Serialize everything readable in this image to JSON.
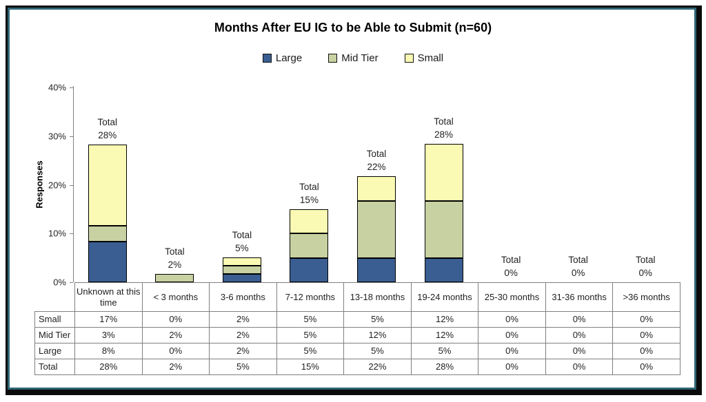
{
  "frame": {
    "outer_border_color": "#0b0b0b",
    "inner_border_color": "#2f6577"
  },
  "title": "Months After EU IG to be Able to Submit (n=60)",
  "y_axis_label": "Responses",
  "chart_data": {
    "type": "bar",
    "stacked": true,
    "title": "Months After EU IG to be Able to Submit (n=60)",
    "ylabel": "Responses",
    "ylim": [
      0,
      40
    ],
    "ytick_labels": [
      "0%",
      "10%",
      "20%",
      "30%",
      "40%"
    ],
    "ytick_values": [
      0,
      10,
      20,
      30,
      40
    ],
    "grid": false,
    "legend_position": "top",
    "categories": [
      "Unknown at this time",
      "< 3 months",
      "3-6 months",
      "7-12 months",
      "13-18 months",
      "19-24 months",
      "25-30 months",
      "31-36 months",
      ">36 months"
    ],
    "series": [
      {
        "name": "Large",
        "color": "#3A5E91",
        "values": [
          8.3,
          0,
          1.7,
          5,
          5,
          5,
          0,
          0,
          0
        ]
      },
      {
        "name": "Mid Tier",
        "color": "#C7D1A2",
        "values": [
          3.3,
          1.7,
          1.7,
          5,
          11.7,
          11.7,
          0,
          0,
          0
        ]
      },
      {
        "name": "Small",
        "color": "#FAFAB4",
        "values": [
          16.7,
          0,
          1.7,
          5,
          5,
          11.7,
          0,
          0,
          0
        ]
      }
    ],
    "total_label_prefix": "Total",
    "total_labels": [
      "28%",
      "2%",
      "5%",
      "15%",
      "22%",
      "28%",
      "0%",
      "0%",
      "0%"
    ]
  },
  "table": {
    "row_headers": [
      "Small",
      "Mid Tier",
      "Large",
      "Total"
    ],
    "columns": [
      "Unknown at this time",
      "< 3 months",
      "3-6 months",
      "7-12 months",
      "13-18 months",
      "19-24 months",
      "25-30 months",
      "31-36 months",
      ">36 months"
    ],
    "rows": [
      [
        "17%",
        "0%",
        "2%",
        "5%",
        "5%",
        "12%",
        "0%",
        "0%",
        "0%"
      ],
      [
        "3%",
        "2%",
        "2%",
        "5%",
        "12%",
        "12%",
        "0%",
        "0%",
        "0%"
      ],
      [
        "8%",
        "0%",
        "2%",
        "5%",
        "5%",
        "5%",
        "0%",
        "0%",
        "0%"
      ],
      [
        "28%",
        "2%",
        "5%",
        "15%",
        "22%",
        "28%",
        "0%",
        "0%",
        "0%"
      ]
    ]
  }
}
